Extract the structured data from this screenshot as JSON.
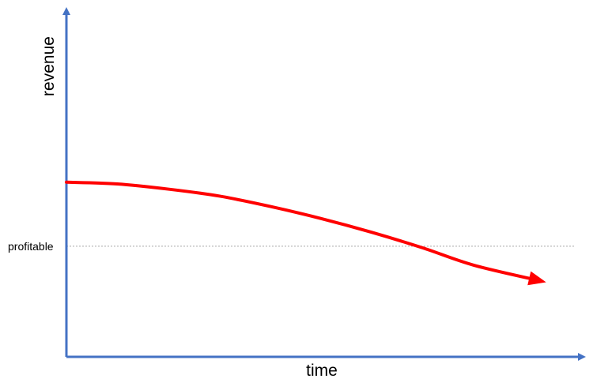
{
  "chart_data": {
    "type": "line",
    "title": "",
    "xlabel": "time",
    "ylabel": "revenue",
    "xlim": [
      0,
      100
    ],
    "ylim": [
      0,
      100
    ],
    "grid": false,
    "legend": "none",
    "reference_line": {
      "label": "profitable",
      "y": 32,
      "style": "dotted",
      "color": "#a6a6a6"
    },
    "series": [
      {
        "color": "#ff0000",
        "x": [
          0,
          10,
          20,
          30,
          40,
          50,
          60,
          70,
          80,
          93
        ],
        "y": [
          50.5,
          50,
          48.5,
          46.5,
          43.5,
          40,
          36,
          31.5,
          26.5,
          22
        ],
        "end_marker": "arrow"
      }
    ],
    "axis_color": "#4472c4"
  }
}
